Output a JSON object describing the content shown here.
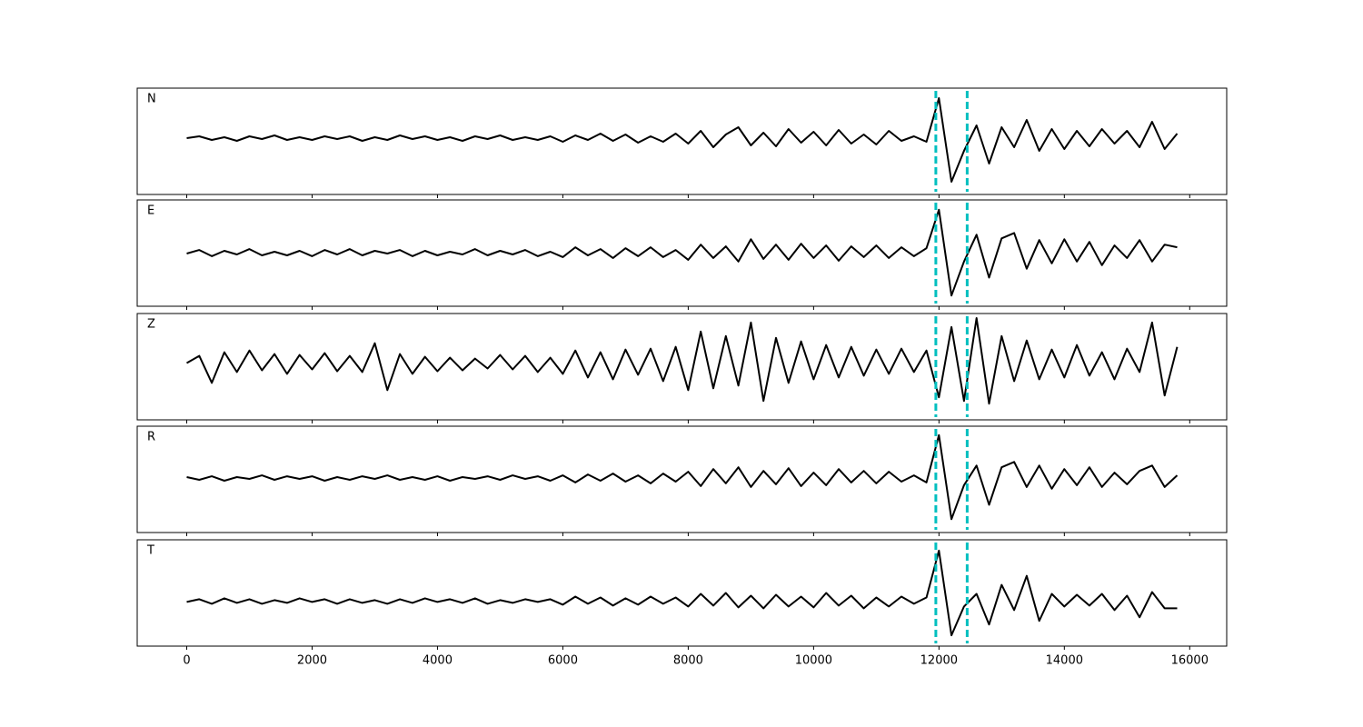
{
  "chart_data": {
    "type": "line",
    "x": [
      0,
      200,
      400,
      600,
      800,
      1000,
      1200,
      1400,
      1600,
      1800,
      2000,
      2200,
      2400,
      2600,
      2800,
      3000,
      3200,
      3400,
      3600,
      3800,
      4000,
      4200,
      4400,
      4600,
      4800,
      5000,
      5200,
      5400,
      5600,
      5800,
      6000,
      6200,
      6400,
      6600,
      6800,
      7000,
      7200,
      7400,
      7600,
      7800,
      8000,
      8200,
      8400,
      8600,
      8800,
      9000,
      9200,
      9400,
      9600,
      9800,
      10000,
      10200,
      10400,
      10600,
      10800,
      11000,
      11200,
      11400,
      11600,
      11800,
      12000,
      12200,
      12400,
      12600,
      12800,
      13000,
      13200,
      13400,
      13600,
      13800,
      14000,
      14200,
      14400,
      14600,
      14800,
      15000,
      15200,
      15400,
      15600,
      15800
    ],
    "xlim": [
      -790,
      16590
    ],
    "xticks": [
      0,
      2000,
      4000,
      6000,
      8000,
      10000,
      12000,
      14000,
      16000
    ],
    "color": "#000000",
    "vlines": [
      11950,
      12450
    ],
    "vline_color": "#00bfbf",
    "series": [
      {
        "name": "N",
        "ylim": [
          -62,
          55
        ],
        "values": [
          0,
          2,
          -2,
          1,
          -3,
          2,
          -1,
          3,
          -2,
          1,
          -2,
          2,
          -1,
          2,
          -3,
          1,
          -2,
          3,
          -1,
          2,
          -2,
          1,
          -3,
          2,
          -1,
          3,
          -2,
          1,
          -2,
          2,
          -4,
          3,
          -2,
          5,
          -3,
          4,
          -5,
          2,
          -4,
          5,
          -6,
          8,
          -10,
          4,
          12,
          -8,
          6,
          -9,
          10,
          -5,
          7,
          -8,
          9,
          -6,
          4,
          -7,
          8,
          -3,
          2,
          -4,
          44,
          -48,
          -14,
          14,
          -28,
          12,
          -10,
          20,
          -14,
          10,
          -12,
          8,
          -9,
          10,
          -6,
          8,
          -10,
          18,
          -12,
          5
        ]
      },
      {
        "name": "E",
        "ylim": [
          -60,
          59
        ],
        "values": [
          -1,
          3,
          -4,
          2,
          -2,
          4,
          -3,
          1,
          -3,
          2,
          -4,
          3,
          -2,
          4,
          -3,
          2,
          -1,
          3,
          -4,
          2,
          -3,
          1,
          -2,
          4,
          -3,
          2,
          -2,
          3,
          -4,
          1,
          -5,
          6,
          -3,
          4,
          -6,
          5,
          -4,
          6,
          -5,
          3,
          -8,
          9,
          -6,
          7,
          -10,
          15,
          -7,
          9,
          -8,
          10,
          -6,
          8,
          -9,
          7,
          -5,
          8,
          -6,
          6,
          -4,
          5,
          48,
          -48,
          -10,
          20,
          -28,
          16,
          22,
          -18,
          14,
          -12,
          15,
          -10,
          12,
          -14,
          8,
          -6,
          14,
          -10,
          9,
          6
        ]
      },
      {
        "name": "Z",
        "ylim": [
          -63,
          55
        ],
        "values": [
          0,
          8,
          -22,
          12,
          -10,
          14,
          -8,
          10,
          -12,
          9,
          -7,
          11,
          -9,
          8,
          -10,
          22,
          -30,
          10,
          -12,
          7,
          -9,
          6,
          -8,
          5,
          -6,
          9,
          -7,
          8,
          -10,
          6,
          -12,
          14,
          -16,
          12,
          -18,
          15,
          -13,
          16,
          -20,
          18,
          -30,
          35,
          -28,
          30,
          -25,
          45,
          -42,
          28,
          -22,
          24,
          -18,
          20,
          -16,
          18,
          -14,
          15,
          -12,
          16,
          -10,
          14,
          -38,
          40,
          -42,
          50,
          -45,
          30,
          -20,
          25,
          -18,
          15,
          -16,
          20,
          -14,
          12,
          -18,
          16,
          -10,
          45,
          -36,
          18
        ]
      },
      {
        "name": "R",
        "ylim": [
          -61,
          58
        ],
        "values": [
          1,
          -2,
          2,
          -3,
          1,
          -1,
          3,
          -2,
          2,
          -1,
          2,
          -3,
          1,
          -2,
          2,
          -1,
          3,
          -2,
          1,
          -2,
          2,
          -3,
          1,
          -1,
          2,
          -2,
          3,
          -1,
          2,
          -3,
          3,
          -5,
          4,
          -3,
          5,
          -4,
          3,
          -6,
          5,
          -4,
          7,
          -9,
          10,
          -6,
          12,
          -10,
          8,
          -7,
          11,
          -9,
          6,
          -8,
          10,
          -5,
          8,
          -6,
          7,
          -4,
          3,
          -5,
          48,
          -46,
          -8,
          14,
          -30,
          12,
          18,
          -10,
          14,
          -12,
          10,
          -8,
          12,
          -10,
          6,
          -7,
          8,
          14,
          -10,
          3
        ]
      },
      {
        "name": "T",
        "ylim": [
          -50,
          68
        ],
        "values": [
          -1,
          2,
          -3,
          3,
          -2,
          2,
          -3,
          1,
          -2,
          3,
          -1,
          2,
          -3,
          2,
          -2,
          1,
          -3,
          2,
          -2,
          3,
          -1,
          2,
          -2,
          3,
          -3,
          1,
          -2,
          2,
          -1,
          2,
          -4,
          5,
          -3,
          4,
          -5,
          3,
          -4,
          5,
          -3,
          4,
          -6,
          8,
          -5,
          9,
          -7,
          6,
          -8,
          7,
          -6,
          5,
          -7,
          9,
          -5,
          6,
          -8,
          4,
          -6,
          5,
          -3,
          4,
          56,
          -38,
          -6,
          8,
          -26,
          18,
          -10,
          28,
          -22,
          8,
          -6,
          7,
          -5,
          8,
          -10,
          6,
          -18,
          10,
          -8,
          -8
        ]
      }
    ]
  }
}
